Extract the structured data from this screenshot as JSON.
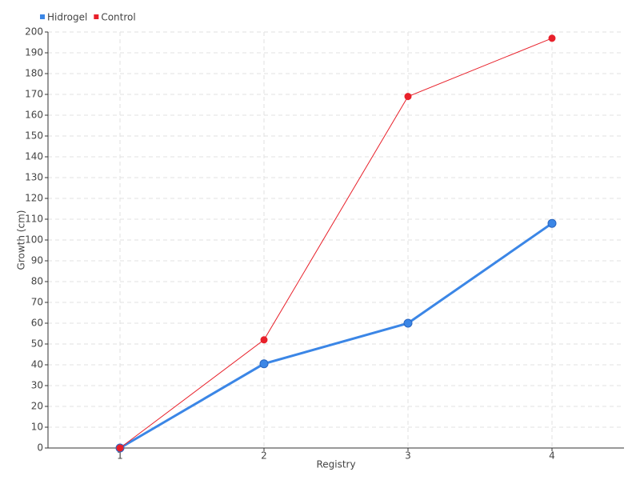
{
  "chart_data": {
    "type": "line",
    "x_label": "Registry",
    "y_label": "Growth (cm)",
    "categories": [
      "1",
      "2",
      "3",
      "4"
    ],
    "series": [
      {
        "name": "Hidrogel",
        "color": "#3b86e6",
        "values": [
          0,
          40.5,
          60,
          108
        ]
      },
      {
        "name": "Control",
        "color": "#e8202a",
        "values": [
          0,
          52,
          169,
          197
        ]
      }
    ],
    "ylim": [
      0,
      200
    ],
    "yticks": [
      0,
      10,
      20,
      30,
      40,
      50,
      60,
      70,
      80,
      90,
      100,
      110,
      120,
      130,
      140,
      150,
      160,
      170,
      180,
      190,
      200
    ],
    "grid": true,
    "legend": "top-left"
  }
}
